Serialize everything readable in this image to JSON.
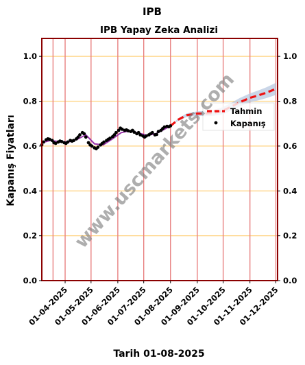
{
  "chart_data": {
    "type": "line",
    "suptitle": "IPB",
    "title": "IPB Yapay Zeka Analizi",
    "xlabel": "Tarih 01-08-2025",
    "ylabel": "Kapanış Fiyatları",
    "ylim": [
      0.0,
      1.08
    ],
    "y_ticks": [
      "0.0",
      "0.2",
      "0.4",
      "0.6",
      "0.8",
      "1.0"
    ],
    "x_range": [
      "2025-03-05",
      "2025-12-03"
    ],
    "x_ticks": [
      {
        "date": "2025-04-01",
        "label": "01-04-2025"
      },
      {
        "date": "2025-05-01",
        "label": "01-05-2025"
      },
      {
        "date": "2025-06-01",
        "label": "01-06-2025"
      },
      {
        "date": "2025-07-01",
        "label": "01-07-2025"
      },
      {
        "date": "2025-08-01",
        "label": "01-08-2025"
      },
      {
        "date": "2025-09-01",
        "label": "01-09-2025"
      },
      {
        "date": "2025-10-01",
        "label": "01-10-2025"
      },
      {
        "date": "2025-11-01",
        "label": "01-11-2025"
      },
      {
        "date": "2025-12-01",
        "label": "01-12-2025"
      }
    ],
    "vlines": [
      "2025-03-18",
      "2025-04-01",
      "2025-05-01",
      "2025-06-01",
      "2025-07-01",
      "2025-08-01",
      "2025-09-01",
      "2025-10-01",
      "2025-11-01",
      "2025-12-01"
    ],
    "grid": "horizontal",
    "legend_position": "right",
    "watermark": "www.uscmarkets.com",
    "colors": {
      "frame": "#8b0000",
      "vline": "#e88080",
      "hgrid": "#ffd27f",
      "forecast": "#ee1111",
      "band": "#b8c8e0",
      "trend": "#9933aa",
      "close": "#000000"
    },
    "series": [
      {
        "name": "Kapanış",
        "style": "scatter",
        "x": [
          "2025-03-05",
          "2025-03-07",
          "2025-03-10",
          "2025-03-12",
          "2025-03-14",
          "2025-03-17",
          "2025-03-19",
          "2025-03-21",
          "2025-03-24",
          "2025-03-26",
          "2025-03-28",
          "2025-03-31",
          "2025-04-02",
          "2025-04-04",
          "2025-04-07",
          "2025-04-09",
          "2025-04-11",
          "2025-04-14",
          "2025-04-16",
          "2025-04-18",
          "2025-04-21",
          "2025-04-23",
          "2025-04-25",
          "2025-04-28",
          "2025-04-30",
          "2025-05-02",
          "2025-05-05",
          "2025-05-07",
          "2025-05-09",
          "2025-05-12",
          "2025-05-14",
          "2025-05-16",
          "2025-05-19",
          "2025-05-21",
          "2025-05-23",
          "2025-05-26",
          "2025-05-28",
          "2025-05-30",
          "2025-06-02",
          "2025-06-04",
          "2025-06-06",
          "2025-06-09",
          "2025-06-11",
          "2025-06-13",
          "2025-06-16",
          "2025-06-18",
          "2025-06-20",
          "2025-06-23",
          "2025-06-25",
          "2025-06-27",
          "2025-06-30",
          "2025-07-02",
          "2025-07-04",
          "2025-07-07",
          "2025-07-09",
          "2025-07-11",
          "2025-07-14",
          "2025-07-16",
          "2025-07-18",
          "2025-07-21",
          "2025-07-23",
          "2025-07-25",
          "2025-07-28",
          "2025-07-30",
          "2025-08-01"
        ],
        "values": [
          0.605,
          0.618,
          0.628,
          0.632,
          0.63,
          0.625,
          0.615,
          0.612,
          0.618,
          0.622,
          0.62,
          0.615,
          0.612,
          0.618,
          0.625,
          0.622,
          0.625,
          0.632,
          0.64,
          0.65,
          0.66,
          0.655,
          0.64,
          0.615,
          0.605,
          0.6,
          0.592,
          0.588,
          0.595,
          0.605,
          0.612,
          0.618,
          0.625,
          0.63,
          0.635,
          0.642,
          0.65,
          0.66,
          0.67,
          0.68,
          0.675,
          0.67,
          0.672,
          0.668,
          0.665,
          0.67,
          0.662,
          0.655,
          0.66,
          0.65,
          0.645,
          0.64,
          0.645,
          0.65,
          0.655,
          0.66,
          0.65,
          0.652,
          0.665,
          0.67,
          0.678,
          0.685,
          0.688,
          0.686,
          0.69
        ]
      },
      {
        "name": "",
        "style": "line",
        "x": [
          "2025-03-05",
          "2025-03-15",
          "2025-03-25",
          "2025-04-05",
          "2025-04-15",
          "2025-04-25",
          "2025-05-05",
          "2025-05-15",
          "2025-05-25",
          "2025-06-05",
          "2025-06-15",
          "2025-06-25",
          "2025-07-05",
          "2025-07-15",
          "2025-07-25",
          "2025-08-01"
        ],
        "values": [
          0.615,
          0.625,
          0.62,
          0.618,
          0.63,
          0.65,
          0.61,
          0.605,
          0.63,
          0.66,
          0.668,
          0.658,
          0.648,
          0.655,
          0.675,
          0.69
        ]
      },
      {
        "name": "Tahmin",
        "style": "dashed",
        "x": [
          "2025-08-01",
          "2025-08-10",
          "2025-08-20",
          "2025-09-01",
          "2025-09-10",
          "2025-09-20",
          "2025-10-01",
          "2025-10-10",
          "2025-10-20",
          "2025-11-01",
          "2025-11-10",
          "2025-11-20",
          "2025-12-01"
        ],
        "values": [
          0.69,
          0.718,
          0.738,
          0.745,
          0.745,
          0.748,
          0.758,
          0.775,
          0.795,
          0.815,
          0.825,
          0.838,
          0.855
        ],
        "band_low": [
          0.69,
          0.712,
          0.73,
          0.735,
          0.733,
          0.735,
          0.742,
          0.758,
          0.776,
          0.795,
          0.803,
          0.814,
          0.828
        ],
        "band_high": [
          0.69,
          0.724,
          0.746,
          0.755,
          0.757,
          0.761,
          0.774,
          0.792,
          0.814,
          0.835,
          0.847,
          0.862,
          0.882
        ]
      }
    ]
  }
}
